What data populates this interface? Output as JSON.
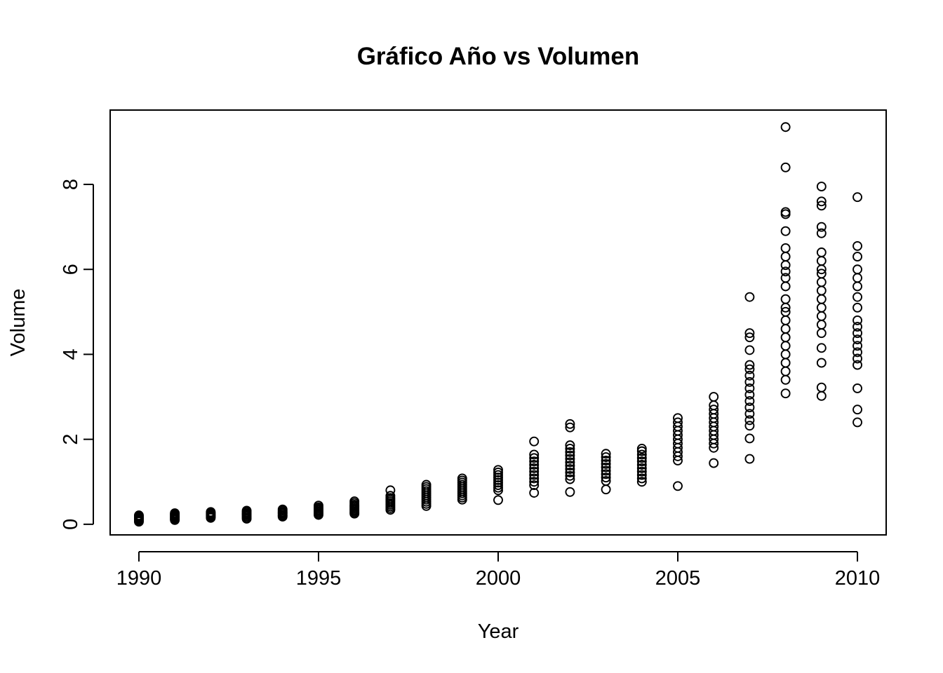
{
  "chart_data": {
    "type": "scatter",
    "title": "Gráfico Año vs Volumen",
    "xlabel": "Year",
    "ylabel": "Volume",
    "xlim": [
      1989.2,
      2010.8
    ],
    "ylim": [
      -0.25,
      9.75
    ],
    "x_ticks": [
      1990,
      1995,
      2000,
      2005,
      2010
    ],
    "y_ticks": [
      0,
      2,
      4,
      6,
      8
    ],
    "grid": false,
    "legend": "none",
    "marker": "open-circle",
    "point_color": "#000000",
    "series": [
      {
        "points": [
          {
            "year": 1990,
            "values": [
              0.06,
              0.08,
              0.1,
              0.12,
              0.14,
              0.15,
              0.17,
              0.19,
              0.21
            ]
          },
          {
            "year": 1991,
            "values": [
              0.1,
              0.12,
              0.14,
              0.16,
              0.18,
              0.2,
              0.22,
              0.24,
              0.26
            ]
          },
          {
            "year": 1992,
            "values": [
              0.15,
              0.17,
              0.19,
              0.21,
              0.23,
              0.25,
              0.27,
              0.29
            ]
          },
          {
            "year": 1993,
            "values": [
              0.13,
              0.16,
              0.19,
              0.22,
              0.24,
              0.26,
              0.29,
              0.32
            ]
          },
          {
            "year": 1994,
            "values": [
              0.18,
              0.2,
              0.22,
              0.25,
              0.27,
              0.29,
              0.32,
              0.35
            ]
          },
          {
            "year": 1995,
            "values": [
              0.22,
              0.25,
              0.28,
              0.31,
              0.34,
              0.37,
              0.4,
              0.44
            ]
          },
          {
            "year": 1996,
            "values": [
              0.25,
              0.28,
              0.31,
              0.34,
              0.37,
              0.4,
              0.43,
              0.46,
              0.5,
              0.54
            ]
          },
          {
            "year": 1997,
            "values": [
              0.34,
              0.38,
              0.42,
              0.46,
              0.5,
              0.54,
              0.58,
              0.62,
              0.67,
              0.8
            ]
          },
          {
            "year": 1998,
            "values": [
              0.43,
              0.48,
              0.53,
              0.58,
              0.63,
              0.68,
              0.73,
              0.78,
              0.83,
              0.88,
              0.93
            ]
          },
          {
            "year": 1999,
            "values": [
              0.58,
              0.63,
              0.68,
              0.73,
              0.78,
              0.83,
              0.88,
              0.93,
              0.98,
              1.03,
              1.08
            ]
          },
          {
            "year": 2000,
            "values": [
              0.57,
              0.8,
              0.86,
              0.92,
              0.98,
              1.04,
              1.1,
              1.16,
              1.22,
              1.28
            ]
          },
          {
            "year": 2001,
            "values": [
              0.74,
              0.92,
              1.0,
              1.08,
              1.16,
              1.24,
              1.32,
              1.4,
              1.48,
              1.56,
              1.64,
              1.95
            ]
          },
          {
            "year": 2002,
            "values": [
              0.76,
              1.06,
              1.14,
              1.22,
              1.3,
              1.38,
              1.46,
              1.54,
              1.62,
              1.7,
              1.78,
              1.86,
              2.28,
              2.36
            ]
          },
          {
            "year": 2003,
            "values": [
              0.82,
              1.02,
              1.1,
              1.18,
              1.26,
              1.34,
              1.42,
              1.5,
              1.58,
              1.66
            ]
          },
          {
            "year": 2004,
            "values": [
              1.0,
              1.08,
              1.16,
              1.24,
              1.32,
              1.4,
              1.48,
              1.56,
              1.64,
              1.72,
              1.78
            ]
          },
          {
            "year": 2005,
            "values": [
              0.9,
              1.5,
              1.6,
              1.7,
              1.8,
              1.9,
              2.0,
              2.1,
              2.2,
              2.3,
              2.4,
              2.5
            ]
          },
          {
            "year": 2006,
            "values": [
              1.44,
              1.8,
              1.9,
              2.0,
              2.1,
              2.2,
              2.3,
              2.4,
              2.5,
              2.6,
              2.7,
              2.8,
              3.0
            ]
          },
          {
            "year": 2007,
            "values": [
              1.54,
              2.02,
              2.32,
              2.45,
              2.6,
              2.75,
              2.9,
              3.05,
              3.2,
              3.35,
              3.5,
              3.65,
              3.75,
              4.1,
              4.4,
              4.5,
              5.35
            ]
          },
          {
            "year": 2008,
            "values": [
              3.08,
              3.4,
              3.6,
              3.8,
              4.0,
              4.2,
              4.4,
              4.6,
              4.8,
              5.0,
              5.1,
              5.3,
              5.6,
              5.8,
              5.95,
              6.1,
              6.3,
              6.5,
              6.9,
              7.3,
              7.35,
              8.4,
              9.35
            ]
          },
          {
            "year": 2009,
            "values": [
              3.02,
              3.22,
              3.8,
              4.15,
              4.5,
              4.7,
              4.9,
              5.1,
              5.3,
              5.5,
              5.7,
              5.9,
              6.0,
              6.2,
              6.4,
              6.85,
              7.0,
              7.5,
              7.6,
              7.95
            ]
          },
          {
            "year": 2010,
            "values": [
              2.4,
              2.7,
              3.2,
              3.75,
              3.9,
              4.05,
              4.2,
              4.35,
              4.5,
              4.65,
              4.8,
              5.1,
              5.35,
              5.6,
              5.8,
              6.0,
              6.3,
              6.55,
              7.7
            ]
          }
        ]
      }
    ]
  }
}
